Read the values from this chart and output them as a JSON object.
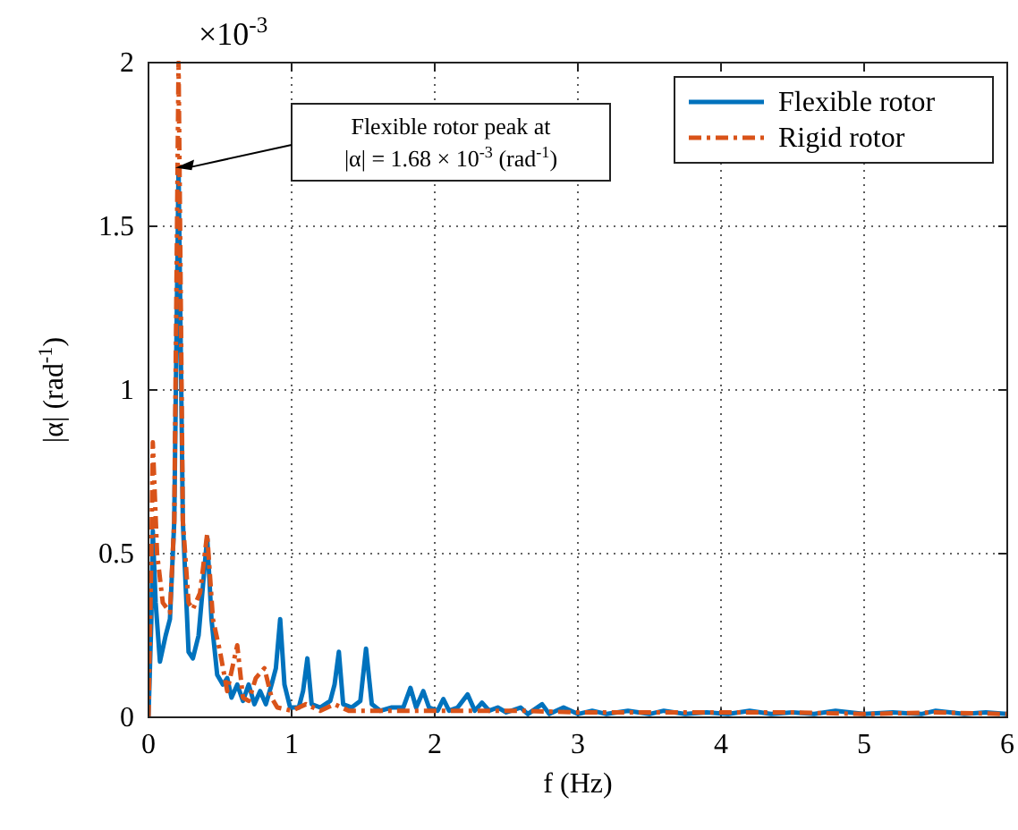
{
  "chart_data": {
    "type": "line",
    "xlabel": "f (Hz)",
    "ylabel": "|α| (rad$^{-1}$)",
    "xlim": [
      0,
      6
    ],
    "ylim": [
      0,
      2
    ],
    "xticks": [
      0,
      1,
      2,
      3,
      4,
      5,
      6
    ],
    "yticks": [
      0,
      0.5,
      1,
      1.5,
      2
    ],
    "grid": true,
    "legend": "top right",
    "annotations": [
      "Flexible rotor peak at\n|α| = 1.68 × 10$^{-3}$  (rad$^{-1}$)",
      "×10$^{-3}$"
    ],
    "series": [
      {
        "name": "Flexible rotor",
        "color": "#0072bd",
        "line_style": "solid",
        "x": [
          0,
          0.02,
          0.03,
          0.05,
          0.08,
          0.12,
          0.15,
          0.18,
          0.21,
          0.24,
          0.28,
          0.31,
          0.35,
          0.38,
          0.41,
          0.44,
          0.48,
          0.52,
          0.55,
          0.58,
          0.62,
          0.66,
          0.7,
          0.74,
          0.78,
          0.82,
          0.86,
          0.89,
          0.92,
          0.95,
          0.99,
          1.05,
          1.08,
          1.11,
          1.14,
          1.2,
          1.27,
          1.3,
          1.33,
          1.36,
          1.42,
          1.48,
          1.52,
          1.56,
          1.62,
          1.7,
          1.78,
          1.83,
          1.87,
          1.92,
          1.96,
          2.02,
          2.06,
          2.1,
          2.16,
          2.23,
          2.28,
          2.33,
          2.38,
          2.44,
          2.5,
          2.6,
          2.65,
          2.75,
          2.8,
          2.9,
          3.0,
          3.1,
          3.2,
          3.35,
          3.5,
          3.6,
          3.75,
          3.9,
          4.05,
          4.2,
          4.35,
          4.5,
          4.65,
          4.8,
          5.0,
          5.2,
          5.4,
          5.5,
          5.7,
          5.85,
          6.0
        ],
        "values": [
          0,
          0.3,
          0.57,
          0.35,
          0.17,
          0.25,
          0.3,
          0.6,
          1.68,
          0.6,
          0.2,
          0.18,
          0.25,
          0.4,
          0.55,
          0.3,
          0.13,
          0.1,
          0.12,
          0.06,
          0.1,
          0.05,
          0.1,
          0.04,
          0.08,
          0.04,
          0.1,
          0.15,
          0.3,
          0.1,
          0.03,
          0.03,
          0.08,
          0.18,
          0.04,
          0.03,
          0.05,
          0.1,
          0.2,
          0.04,
          0.03,
          0.05,
          0.21,
          0.04,
          0.02,
          0.03,
          0.03,
          0.09,
          0.03,
          0.08,
          0.03,
          0.02,
          0.056,
          0.02,
          0.03,
          0.07,
          0.02,
          0.045,
          0.02,
          0.03,
          0.015,
          0.03,
          0.01,
          0.04,
          0.01,
          0.03,
          0.01,
          0.02,
          0.01,
          0.02,
          0.01,
          0.02,
          0.01,
          0.015,
          0.01,
          0.02,
          0.01,
          0.015,
          0.01,
          0.02,
          0.01,
          0.015,
          0.01,
          0.02,
          0.01,
          0.015,
          0.01
        ]
      },
      {
        "name": "Rigid rotor",
        "color": "#d95319",
        "line_style": "dashed",
        "x": [
          0,
          0.02,
          0.03,
          0.06,
          0.1,
          0.15,
          0.18,
          0.21,
          0.24,
          0.28,
          0.31,
          0.36,
          0.41,
          0.45,
          0.5,
          0.55,
          0.62,
          0.66,
          0.7,
          0.75,
          0.81,
          0.86,
          0.9,
          1.0,
          1.1,
          1.2,
          1.3,
          1.4,
          1.6,
          1.8,
          2.0,
          2.3,
          2.6,
          3.0,
          3.5,
          4.0,
          4.5,
          5.0,
          5.5,
          6.0
        ],
        "values": [
          0,
          0.5,
          0.84,
          0.5,
          0.35,
          0.32,
          0.6,
          2,
          0.6,
          0.35,
          0.33,
          0.38,
          0.56,
          0.3,
          0.2,
          0.08,
          0.22,
          0.06,
          0.05,
          0.12,
          0.15,
          0.06,
          0.03,
          0.02,
          0.04,
          0.02,
          0.04,
          0.02,
          0.02,
          0.02,
          0.02,
          0.02,
          0.02,
          0.015,
          0.015,
          0.015,
          0.015,
          0.01,
          0.015,
          0.01
        ]
      }
    ]
  }
}
